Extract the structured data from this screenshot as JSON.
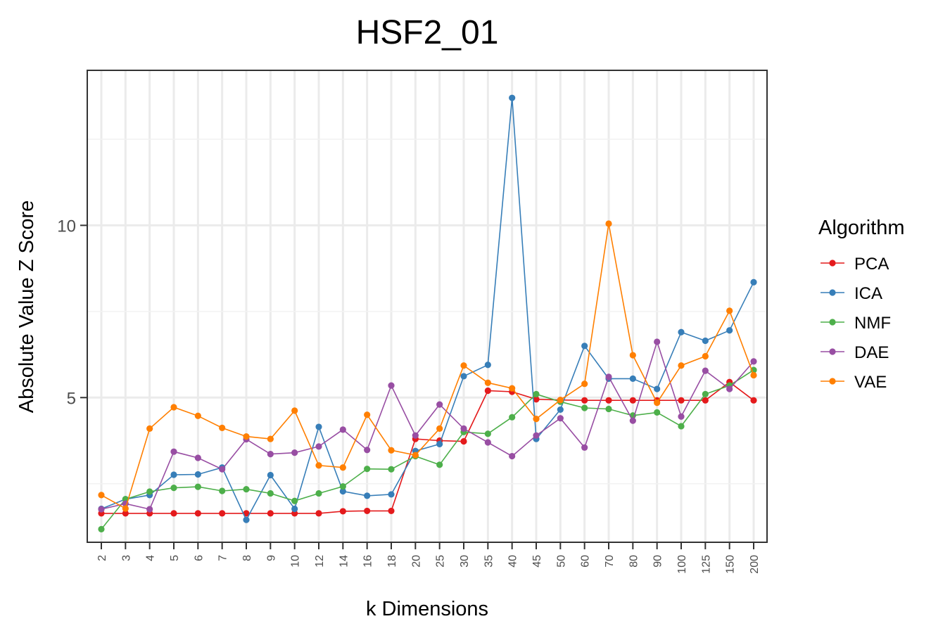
{
  "chart_data": {
    "type": "line",
    "title": "HSF2_01",
    "xlabel": "k Dimensions",
    "ylabel": "Absolute Value Z Score",
    "categories": [
      "2",
      "3",
      "4",
      "5",
      "6",
      "7",
      "8",
      "9",
      "10",
      "12",
      "14",
      "16",
      "18",
      "20",
      "25",
      "30",
      "35",
      "40",
      "45",
      "50",
      "60",
      "70",
      "80",
      "90",
      "100",
      "125",
      "150",
      "200"
    ],
    "ylim": [
      0.8,
      14.5
    ],
    "yticks": [
      5,
      10
    ],
    "grid": true,
    "legend": {
      "title": "Algorithm",
      "position": "right"
    },
    "series": [
      {
        "name": "PCA",
        "color": "#E41A1C",
        "values": [
          1.64,
          1.64,
          1.64,
          1.64,
          1.64,
          1.64,
          1.64,
          1.64,
          1.64,
          1.64,
          1.7,
          1.71,
          1.71,
          3.8,
          3.75,
          3.73,
          5.2,
          5.17,
          4.95,
          4.93,
          4.92,
          4.92,
          4.92,
          4.92,
          4.92,
          4.92,
          5.45,
          4.92
        ]
      },
      {
        "name": "ICA",
        "color": "#377EB8",
        "values": [
          1.77,
          2.05,
          2.17,
          2.76,
          2.77,
          2.97,
          1.45,
          2.75,
          1.77,
          4.15,
          2.28,
          2.15,
          2.19,
          3.45,
          3.65,
          5.62,
          5.95,
          13.7,
          3.8,
          4.65,
          6.5,
          5.55,
          5.55,
          5.25,
          6.9,
          6.65,
          6.95,
          8.35
        ]
      },
      {
        "name": "NMF",
        "color": "#4DAF4A",
        "values": [
          1.18,
          2.05,
          2.27,
          2.38,
          2.41,
          2.29,
          2.34,
          2.22,
          2.0,
          2.22,
          2.42,
          2.93,
          2.92,
          3.3,
          3.05,
          4.0,
          3.95,
          4.43,
          5.1,
          4.88,
          4.7,
          4.67,
          4.48,
          4.57,
          4.17,
          5.1,
          5.35,
          5.8
        ]
      },
      {
        "name": "DAE",
        "color": "#984EA3",
        "values": [
          1.76,
          1.92,
          1.76,
          3.43,
          3.25,
          2.92,
          3.79,
          3.36,
          3.4,
          3.58,
          4.07,
          3.48,
          5.35,
          3.9,
          4.8,
          4.1,
          3.7,
          3.3,
          3.9,
          4.4,
          3.55,
          5.6,
          4.33,
          6.62,
          4.45,
          5.78,
          5.25,
          6.05
        ]
      },
      {
        "name": "VAE",
        "color": "#FF7F00",
        "values": [
          2.17,
          1.78,
          4.1,
          4.72,
          4.47,
          4.12,
          3.87,
          3.8,
          4.62,
          3.03,
          2.97,
          4.5,
          3.47,
          3.33,
          4.1,
          5.93,
          5.43,
          5.27,
          4.38,
          4.93,
          5.4,
          10.05,
          6.23,
          4.85,
          5.93,
          6.2,
          7.52,
          5.65
        ]
      }
    ]
  }
}
